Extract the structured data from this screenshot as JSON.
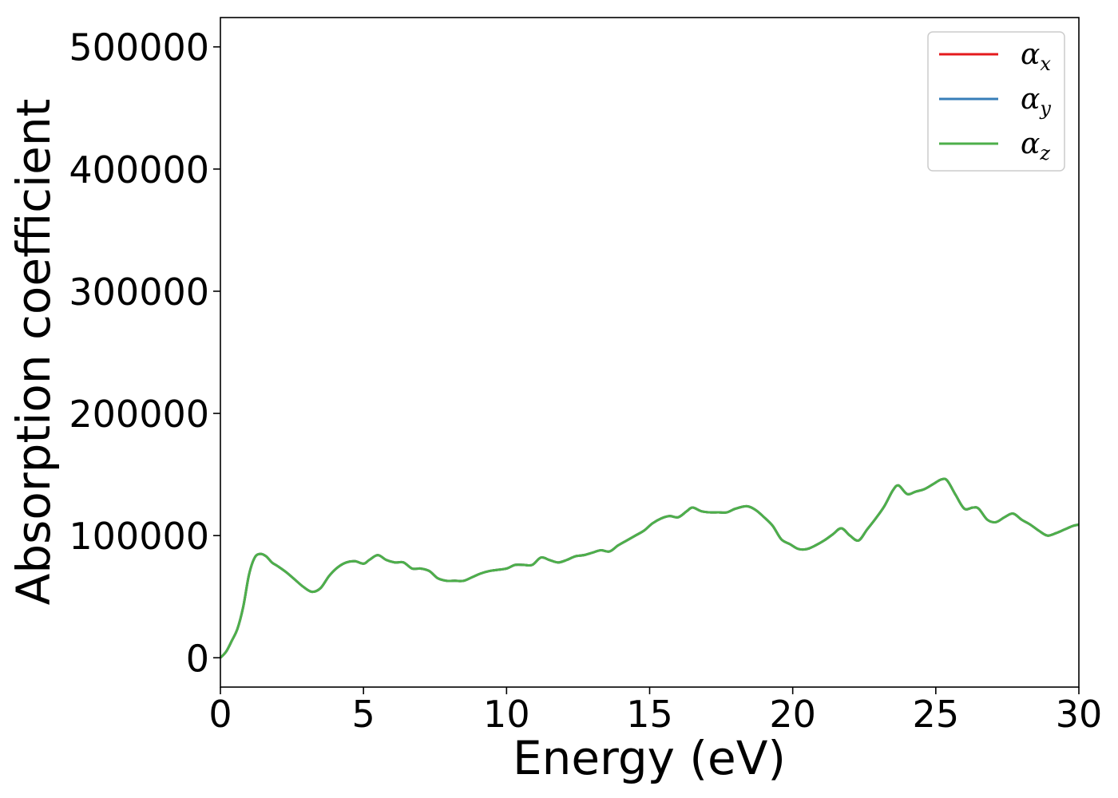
{
  "chart_data": {
    "type": "line",
    "title": "",
    "xlabel": "Energy (eV)",
    "ylabel": "Absorption coefficient",
    "xlim": [
      0,
      30
    ],
    "ylim": [
      -24000,
      524000
    ],
    "xticks": [
      0,
      5,
      10,
      15,
      20,
      25,
      30
    ],
    "xtick_labels": [
      "0",
      "5",
      "10",
      "15",
      "20",
      "25",
      "30"
    ],
    "yticks": [
      0,
      100000,
      200000,
      300000,
      400000,
      500000
    ],
    "ytick_labels": [
      "0",
      "100000",
      "200000",
      "300000",
      "400000",
      "500000"
    ],
    "grid": false,
    "legend_position": "top-right",
    "x": [
      0,
      0.2,
      0.4,
      0.6,
      0.8,
      1.0,
      1.2,
      1.4,
      1.6,
      1.8,
      2.0,
      2.3,
      2.6,
      2.9,
      3.2,
      3.5,
      3.8,
      4.1,
      4.4,
      4.7,
      5.0,
      5.2,
      5.5,
      5.8,
      6.1,
      6.4,
      6.7,
      7.0,
      7.3,
      7.6,
      7.9,
      8.2,
      8.5,
      8.8,
      9.1,
      9.4,
      9.7,
      10.0,
      10.3,
      10.6,
      10.9,
      11.2,
      11.5,
      11.8,
      12.1,
      12.4,
      12.7,
      13.0,
      13.3,
      13.6,
      13.9,
      14.2,
      14.5,
      14.8,
      15.1,
      15.4,
      15.7,
      16.0,
      16.3,
      16.5,
      16.8,
      17.1,
      17.4,
      17.7,
      18.0,
      18.4,
      18.7,
      19.0,
      19.3,
      19.6,
      19.9,
      20.2,
      20.5,
      20.8,
      21.1,
      21.4,
      21.7,
      22.0,
      22.3,
      22.6,
      22.9,
      23.2,
      23.5,
      23.7,
      24.0,
      24.3,
      24.6,
      24.9,
      25.2,
      25.4,
      25.7,
      26.0,
      26.3,
      26.5,
      26.8,
      27.1,
      27.4,
      27.7,
      28.0,
      28.3,
      28.6,
      28.9,
      29.2,
      29.5,
      29.8,
      30.0
    ],
    "series": [
      {
        "name": "α_x",
        "color": "#e41a1c",
        "values": [
          0,
          5000,
          14000,
          24000,
          42000,
          68000,
          82000,
          85000,
          83000,
          78000,
          75000,
          70000,
          64000,
          58000,
          54000,
          57000,
          67000,
          74000,
          78000,
          79000,
          77000,
          80000,
          84000,
          80000,
          78000,
          78000,
          73000,
          73000,
          71000,
          65000,
          63000,
          63000,
          63000,
          66000,
          69000,
          71000,
          72000,
          73000,
          76000,
          76000,
          76000,
          82000,
          80000,
          78000,
          80000,
          83000,
          84000,
          86000,
          88000,
          87000,
          92000,
          96000,
          100000,
          104000,
          110000,
          114000,
          116000,
          115000,
          120000,
          123000,
          120000,
          119000,
          119000,
          119000,
          122000,
          124000,
          121000,
          115000,
          108000,
          97000,
          93000,
          89000,
          89000,
          92000,
          96000,
          101000,
          106000,
          100000,
          96000,
          105000,
          114000,
          124000,
          137000,
          141000,
          134000,
          136000,
          138000,
          142000,
          146000,
          145000,
          133000,
          122000,
          123000,
          122000,
          113000,
          111000,
          115000,
          118000,
          113000,
          109000,
          104000,
          100000,
          102000,
          105000,
          108000,
          109000
        ]
      },
      {
        "name": "α_y",
        "color": "#377eb8",
        "values": [
          0,
          5000,
          14000,
          24000,
          42000,
          68000,
          82000,
          85000,
          83000,
          78000,
          75000,
          70000,
          64000,
          58000,
          54000,
          57000,
          67000,
          74000,
          78000,
          79000,
          77000,
          80000,
          84000,
          80000,
          78000,
          78000,
          73000,
          73000,
          71000,
          65000,
          63000,
          63000,
          63000,
          66000,
          69000,
          71000,
          72000,
          73000,
          76000,
          76000,
          76000,
          82000,
          80000,
          78000,
          80000,
          83000,
          84000,
          86000,
          88000,
          87000,
          92000,
          96000,
          100000,
          104000,
          110000,
          114000,
          116000,
          115000,
          120000,
          123000,
          120000,
          119000,
          119000,
          119000,
          122000,
          124000,
          121000,
          115000,
          108000,
          97000,
          93000,
          89000,
          89000,
          92000,
          96000,
          101000,
          106000,
          100000,
          96000,
          105000,
          114000,
          124000,
          137000,
          141000,
          134000,
          136000,
          138000,
          142000,
          146000,
          145000,
          133000,
          122000,
          123000,
          122000,
          113000,
          111000,
          115000,
          118000,
          113000,
          109000,
          104000,
          100000,
          102000,
          105000,
          108000,
          109000
        ]
      },
      {
        "name": "α_z",
        "color": "#4daf4a",
        "values": [
          0,
          5000,
          14000,
          24000,
          42000,
          68000,
          82000,
          85000,
          83000,
          78000,
          75000,
          70000,
          64000,
          58000,
          54000,
          57000,
          67000,
          74000,
          78000,
          79000,
          77000,
          80000,
          84000,
          80000,
          78000,
          78000,
          73000,
          73000,
          71000,
          65000,
          63000,
          63000,
          63000,
          66000,
          69000,
          71000,
          72000,
          73000,
          76000,
          76000,
          76000,
          82000,
          80000,
          78000,
          80000,
          83000,
          84000,
          86000,
          88000,
          87000,
          92000,
          96000,
          100000,
          104000,
          110000,
          114000,
          116000,
          115000,
          120000,
          123000,
          120000,
          119000,
          119000,
          119000,
          122000,
          124000,
          121000,
          115000,
          108000,
          97000,
          93000,
          89000,
          89000,
          92000,
          96000,
          101000,
          106000,
          100000,
          96000,
          105000,
          114000,
          124000,
          137000,
          141000,
          134000,
          136000,
          138000,
          142000,
          146000,
          145000,
          133000,
          122000,
          123000,
          122000,
          113000,
          111000,
          115000,
          118000,
          113000,
          109000,
          104000,
          100000,
          102000,
          105000,
          108000,
          109000
        ]
      }
    ],
    "legend": [
      {
        "base": "α",
        "sub": "x"
      },
      {
        "base": "α",
        "sub": "y"
      },
      {
        "base": "α",
        "sub": "z"
      }
    ]
  }
}
